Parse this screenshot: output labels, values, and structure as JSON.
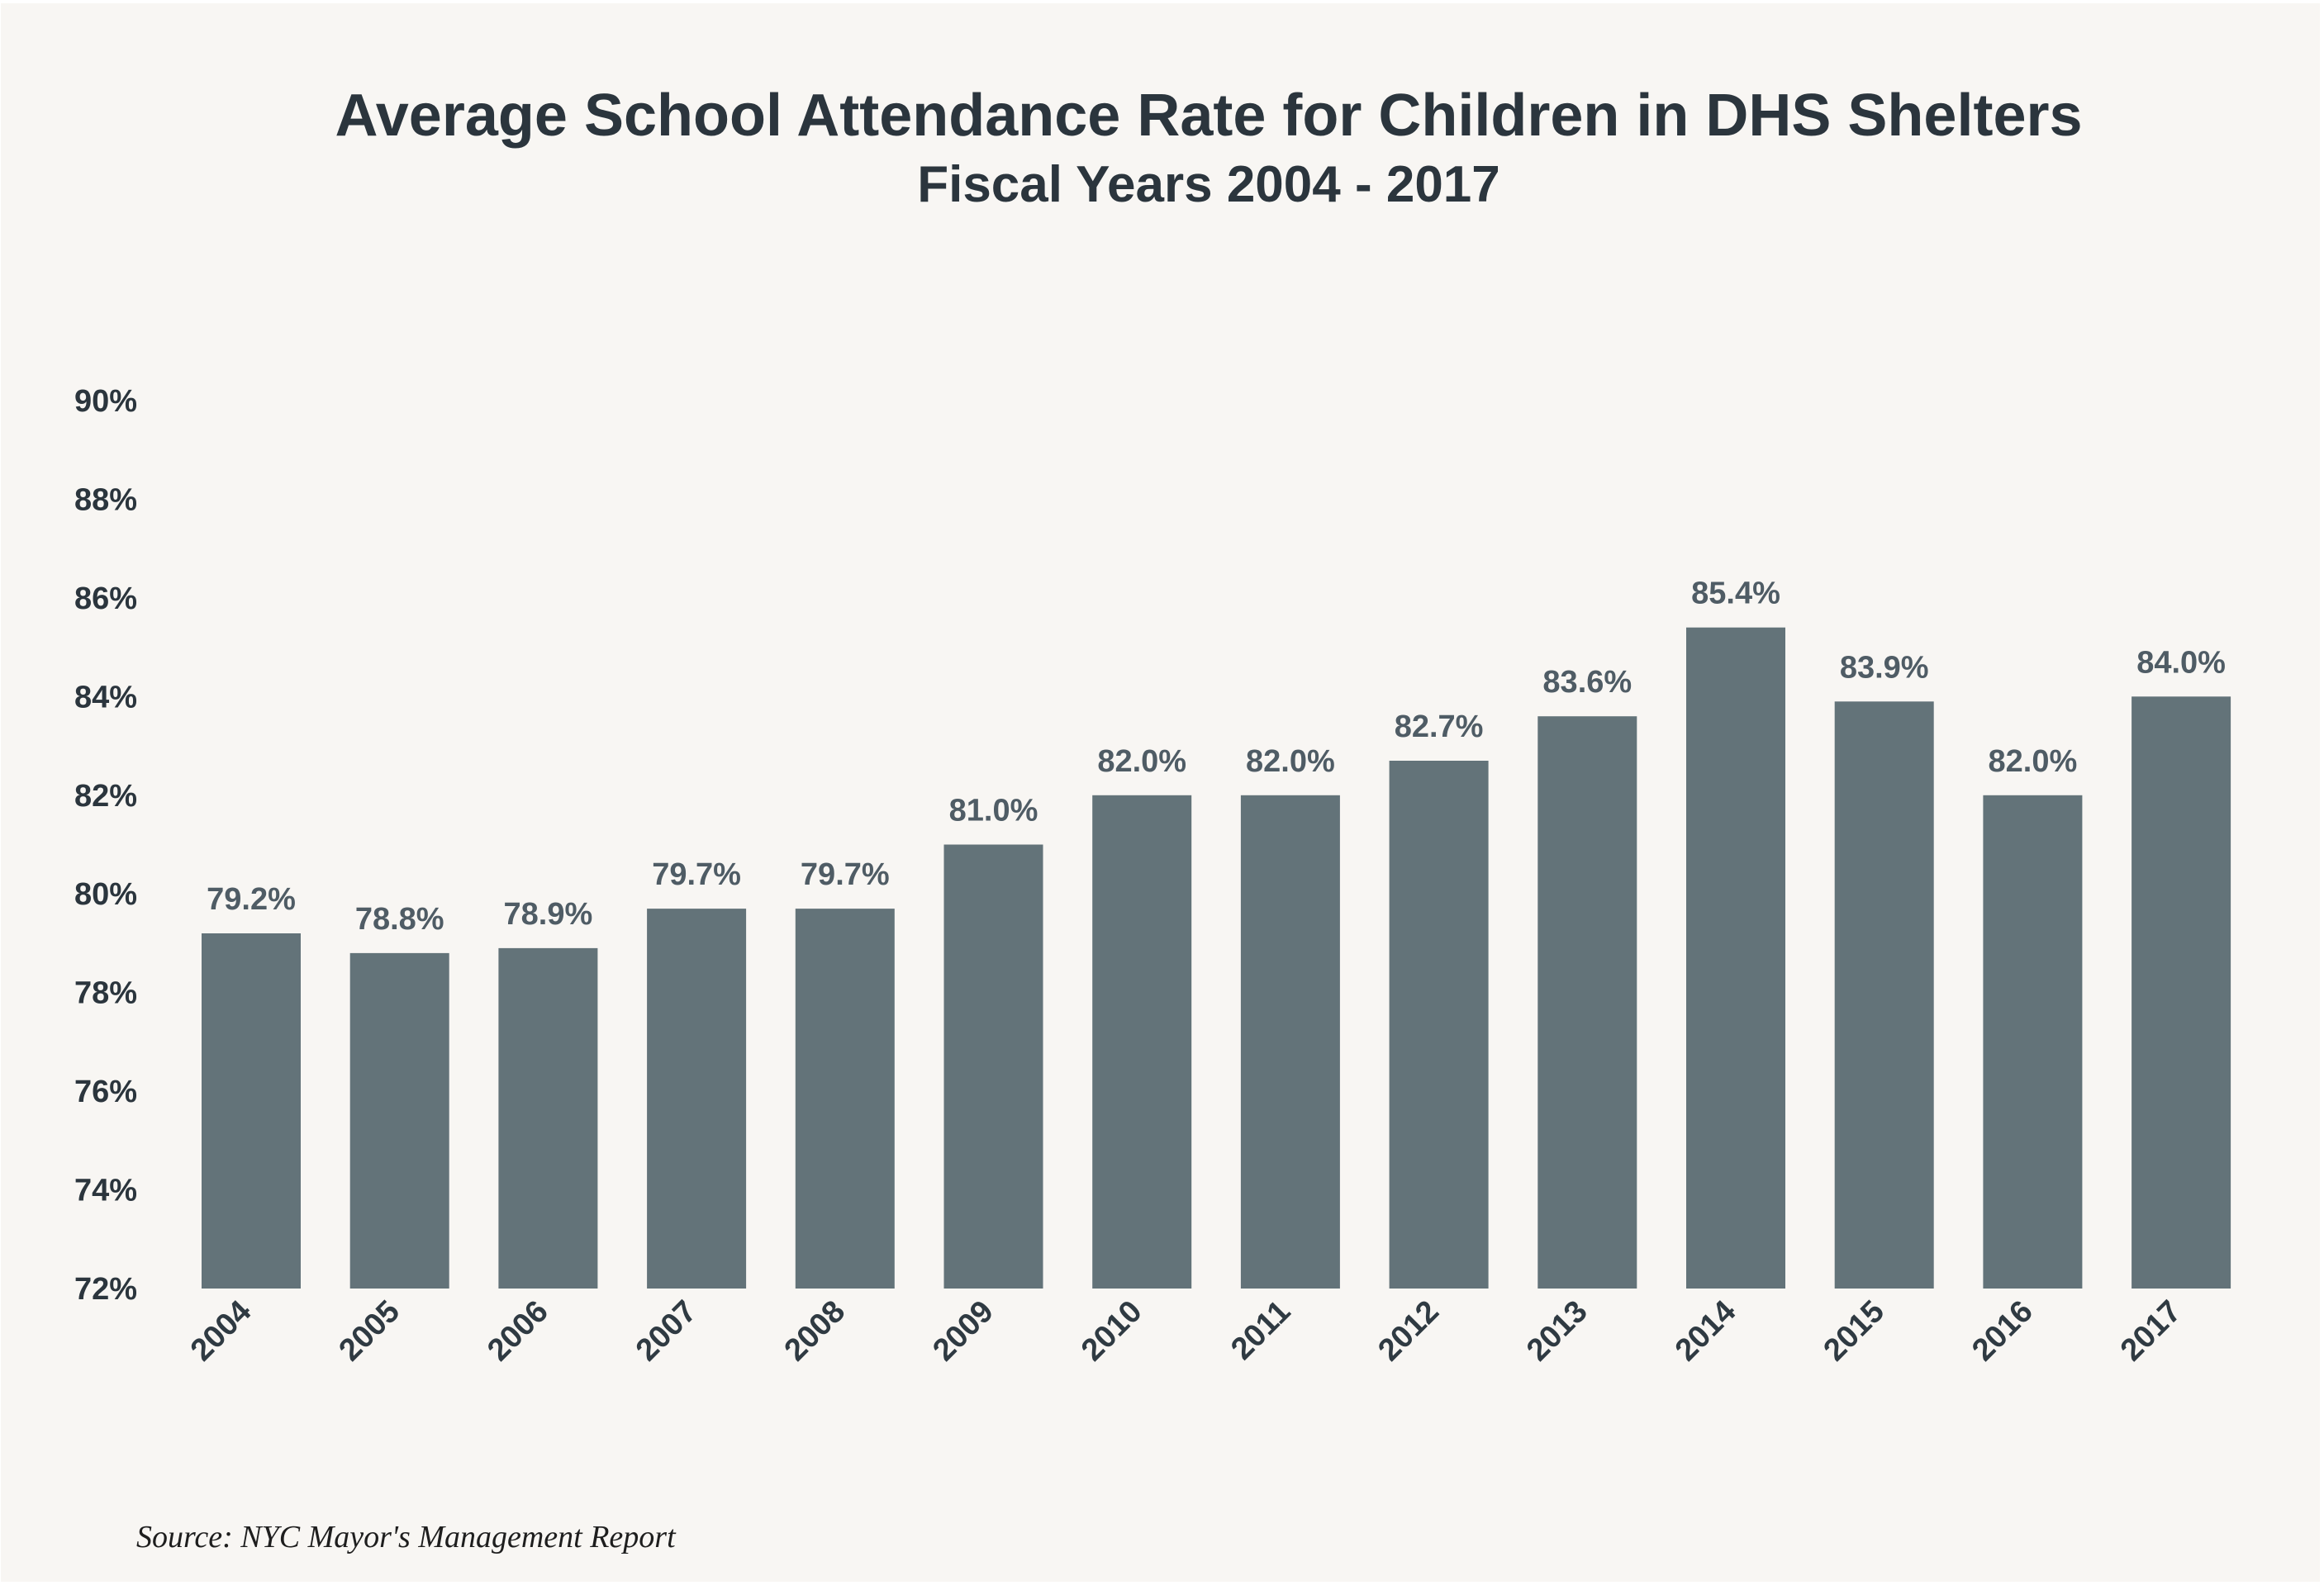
{
  "chart_data": {
    "type": "bar",
    "title": "Average School Attendance Rate for Children in DHS Shelters",
    "subtitle": "Fiscal Years 2004 - 2017",
    "xlabel": "",
    "ylabel": "",
    "categories": [
      "2004",
      "2005",
      "2006",
      "2007",
      "2008",
      "2009",
      "2010",
      "2011",
      "2012",
      "2013",
      "2014",
      "2015",
      "2016",
      "2017"
    ],
    "values": [
      79.2,
      78.8,
      78.9,
      79.7,
      79.7,
      81.0,
      82.0,
      82.0,
      82.7,
      83.6,
      85.4,
      83.9,
      82.0,
      84.0
    ],
    "value_labels": [
      "79.2%",
      "78.8%",
      "78.9%",
      "79.7%",
      "79.7%",
      "81.0%",
      "82.0%",
      "82.0%",
      "82.7%",
      "83.6%",
      "85.4%",
      "83.9%",
      "82.0%",
      "84.0%"
    ],
    "ylim": [
      72,
      90
    ],
    "yticks": [
      72,
      74,
      76,
      78,
      80,
      82,
      84,
      86,
      88,
      90
    ],
    "ytick_labels": [
      "72%",
      "74%",
      "76%",
      "78%",
      "80%",
      "82%",
      "84%",
      "86%",
      "88%",
      "90%"
    ],
    "grid": false,
    "legend": "none",
    "source": "Source:  NYC Mayor's Management Report",
    "colors": {
      "bar": "#637379",
      "background": "#f8f6f3",
      "text": "#2b353d",
      "value_label": "#4f5c65"
    }
  }
}
